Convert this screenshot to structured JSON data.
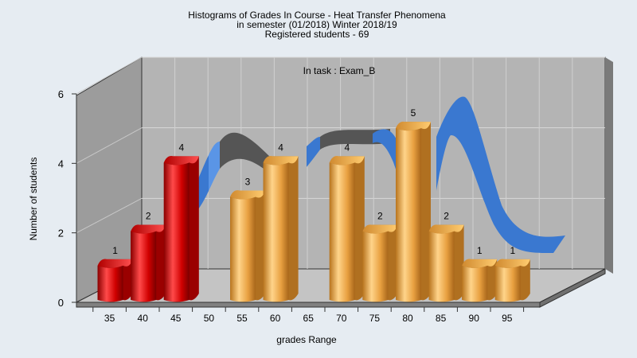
{
  "chart_data": {
    "type": "bar",
    "title_lines": [
      "Histograms of Grades  In Course - Heat Transfer Phenomena",
      "in semester  (01/2018) Winter 2018/19",
      "Registered students - 69"
    ],
    "annotation": "In task : Exam_B",
    "xlabel": "grades Range",
    "ylabel": "Number of students",
    "x_ticks": [
      "35",
      "40",
      "45",
      "50",
      "55",
      "60",
      "65",
      "70",
      "75",
      "80",
      "85",
      "90",
      "95"
    ],
    "y_ticks": [
      "0",
      "2",
      "4",
      "6"
    ],
    "ylim": [
      0,
      6
    ],
    "bars": [
      {
        "range_start": 35,
        "value": 1,
        "label": "1",
        "color": "red"
      },
      {
        "range_start": 40,
        "value": 2,
        "label": "2",
        "color": "red"
      },
      {
        "range_start": 45,
        "value": 4,
        "label": "4",
        "color": "red"
      },
      {
        "range_start": 55,
        "value": 3,
        "label": "3",
        "color": "orange"
      },
      {
        "range_start": 60,
        "value": 4,
        "label": "4",
        "color": "orange"
      },
      {
        "range_start": 70,
        "value": 4,
        "label": "4",
        "color": "orange"
      },
      {
        "range_start": 75,
        "value": 2,
        "label": "2",
        "color": "orange"
      },
      {
        "range_start": 80,
        "value": 5,
        "label": "5",
        "color": "orange"
      },
      {
        "range_start": 85,
        "value": 2,
        "label": "2",
        "color": "orange"
      },
      {
        "range_start": 90,
        "value": 1,
        "label": "1",
        "color": "orange"
      },
      {
        "range_start": 95,
        "value": 1,
        "label": "1",
        "color": "orange"
      }
    ],
    "colors": {
      "background": "#e6ecf2",
      "plot_back": "#b4b4b4",
      "plot_left": "#9c9c9c",
      "plot_floor": "#c4c4c4",
      "red_bar": "#e01010",
      "orange_bar": "#e8a040",
      "ribbon_blue": "#3a78d0",
      "ribbon_gray": "#555555"
    }
  }
}
